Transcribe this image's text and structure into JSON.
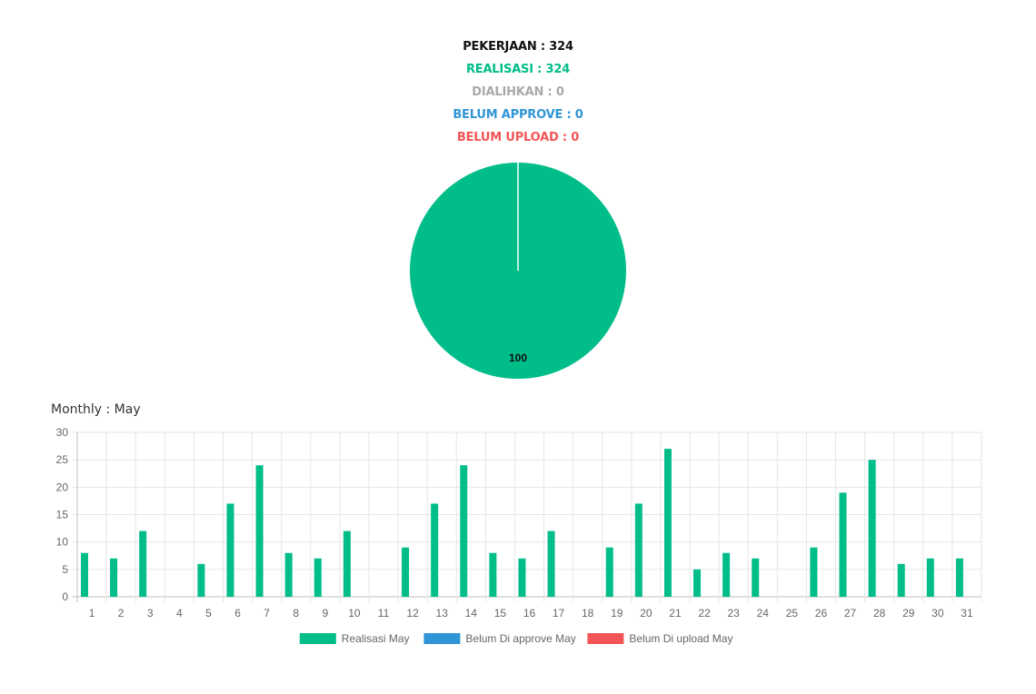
{
  "summary": {
    "pekerjaan": "PEKERJAAN : 324",
    "realisasi": "REALISASI : 324",
    "dialihkan": "DIALIHKAN : 0",
    "belum_approve": "BELUM APPROVE : 0",
    "belum_upload": "BELUM UPLOAD : 0"
  },
  "colors": {
    "realisasi": "#00bd89",
    "dialihkan": "#a9a9a9",
    "approve": "#2f95d6",
    "upload": "#f25555",
    "grid": "#e6e6e6",
    "axis": "#bfbfbf"
  },
  "monthly_title": "Monthly : May",
  "chart_data": [
    {
      "type": "pie",
      "slices": [
        {
          "name": "REALISASI",
          "value": 100,
          "color": "#00bd89"
        },
        {
          "name": "DIALIHKAN",
          "value": 0,
          "color": "#a9a9a9"
        },
        {
          "name": "BELUM APPROVE",
          "value": 0,
          "color": "#2f95d6"
        },
        {
          "name": "BELUM UPLOAD",
          "value": 0,
          "color": "#f25555"
        }
      ],
      "data_labels": [
        "100"
      ]
    },
    {
      "type": "bar",
      "title": "Monthly : May",
      "categories": [
        "1",
        "2",
        "3",
        "4",
        "5",
        "6",
        "7",
        "8",
        "9",
        "10",
        "11",
        "12",
        "13",
        "14",
        "15",
        "16",
        "17",
        "18",
        "19",
        "20",
        "21",
        "22",
        "23",
        "24",
        "25",
        "26",
        "27",
        "28",
        "29",
        "30",
        "31"
      ],
      "series": [
        {
          "name": "Realisasi May",
          "color": "#00bd89",
          "values": [
            8,
            7,
            12,
            0,
            6,
            17,
            24,
            8,
            7,
            12,
            0,
            9,
            17,
            24,
            8,
            7,
            12,
            0,
            9,
            17,
            27,
            5,
            8,
            7,
            0,
            9,
            19,
            25,
            6,
            7,
            7
          ]
        },
        {
          "name": "Belum Di approve May",
          "color": "#2f95d6",
          "values": [
            0,
            0,
            0,
            0,
            0,
            0,
            0,
            0,
            0,
            0,
            0,
            0,
            0,
            0,
            0,
            0,
            0,
            0,
            0,
            0,
            0,
            0,
            0,
            0,
            0,
            0,
            0,
            0,
            0,
            0,
            0
          ]
        },
        {
          "name": "Belum Di upload May",
          "color": "#f25555",
          "values": [
            0,
            0,
            0,
            0,
            0,
            0,
            0,
            0,
            0,
            0,
            0,
            0,
            0,
            0,
            0,
            0,
            0,
            0,
            0,
            0,
            0,
            0,
            0,
            0,
            0,
            0,
            0,
            0,
            0,
            0,
            0
          ]
        }
      ],
      "y_ticks": [
        "0",
        "5",
        "10",
        "15",
        "20",
        "25",
        "30"
      ],
      "ylim": [
        0,
        30
      ],
      "grid": true,
      "legend": "bottom"
    }
  ]
}
